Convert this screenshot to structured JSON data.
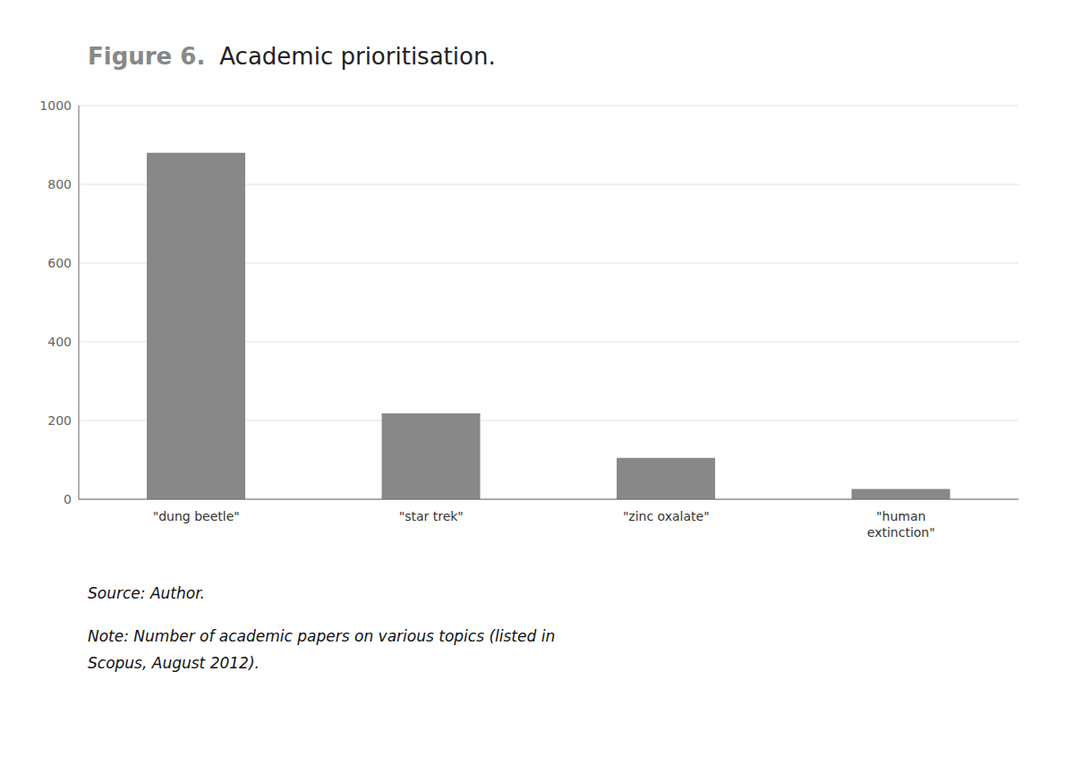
{
  "chart_data": {
    "type": "bar",
    "title": "Figure 6.",
    "subtitle": "Academic prioritisation.",
    "categories": [
      "\"dung beetle\"",
      "\"star trek\"",
      "\"zinc oxalate\"",
      "\"human\nextinction\""
    ],
    "values": [
      880,
      218,
      105,
      26
    ],
    "color": "#888888",
    "ylim": [
      0,
      1000
    ],
    "yticks": [
      0,
      200,
      400,
      600,
      800,
      1000
    ],
    "grid": true,
    "annotations": [
      "Source: Author.",
      "Note: Number of academic papers on various topics (listed in\nScopus, August 2012)."
    ]
  }
}
